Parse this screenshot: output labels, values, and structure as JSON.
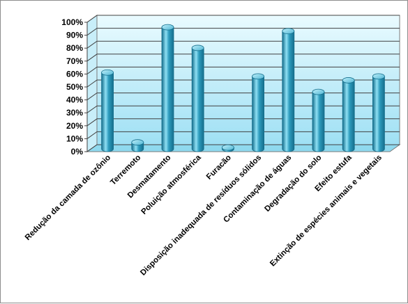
{
  "chart_data": {
    "type": "bar",
    "style": "3d-cylinder",
    "categories": [
      "Redução da camada de  ozônio",
      "Terremoto",
      "Desmatamento",
      "Poluição atmosférica",
      "Furacão",
      "Disposição inadequada de resíduos sólidos",
      "Contaminação de águas",
      "Degradação do solo",
      "Efeito estufa",
      "Extinção de espécies animais e vegetais"
    ],
    "values": [
      59,
      5,
      94,
      78,
      1,
      56,
      91,
      44,
      53,
      56
    ],
    "ylim": [
      0,
      100
    ],
    "yticks": [
      "0%",
      "10%",
      "20%",
      "30%",
      "40%",
      "50%",
      "60%",
      "70%",
      "80%",
      "90%",
      "100%"
    ],
    "grid": true,
    "legend": "none",
    "colors": {
      "bar": "#2c9bbd",
      "bar_dark": "#156e8c",
      "bar_light": "#8fe0f4",
      "wall_top": "#eafbff",
      "wall_bottom": "#9fe0f4",
      "gridline": "#404040"
    }
  }
}
